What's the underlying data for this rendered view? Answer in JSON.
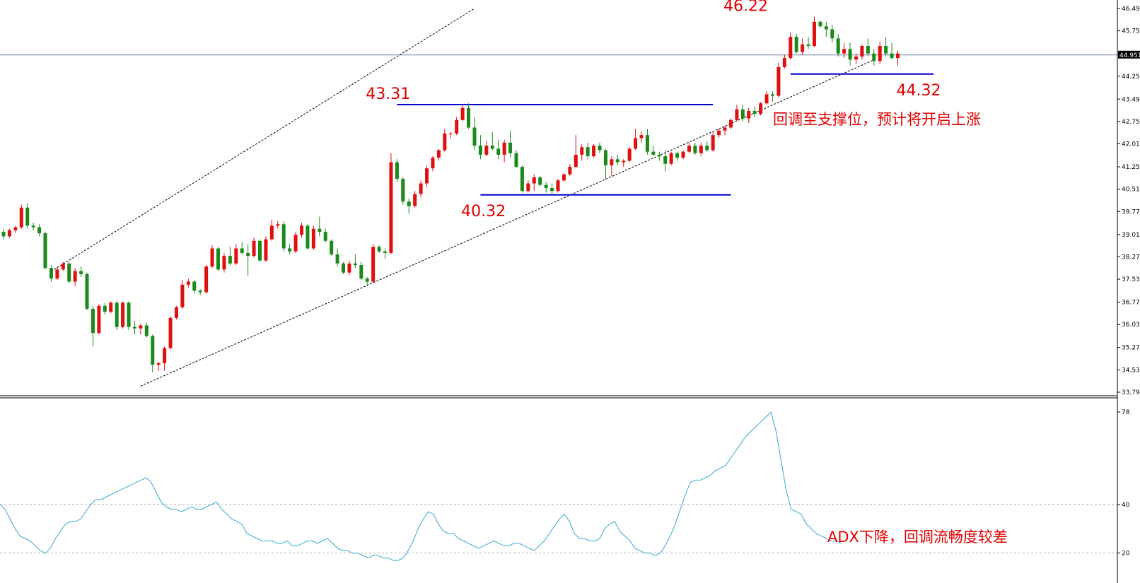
{
  "colors": {
    "up": "#e01010",
    "down": "#1a8a1a",
    "level": "#0000cc",
    "annotation": "#e00000",
    "adx": "#33aacc",
    "axis": "#000000",
    "price_line": "#7080a0"
  },
  "chart_data": [
    {
      "type": "candlestick",
      "ylim": [
        33.79,
        46.49
      ],
      "y_ticks": [
        "46.490",
        "45.750",
        "44.951",
        "44.250",
        "43.490",
        "42.750",
        "42.010",
        "41.250",
        "40.510",
        "39.770",
        "39.010",
        "38.270",
        "37.530",
        "36.770",
        "36.030",
        "35.270",
        "34.530",
        "33.790"
      ],
      "current_price": "44.951",
      "trend_channel": {
        "lower": [
          [
            23,
            33.99
          ],
          [
            146,
            44.79
          ]
        ],
        "upper": [
          [
            8,
            37.79
          ],
          [
            79,
            46.49
          ]
        ]
      },
      "levels": [
        {
          "value": 43.31,
          "x_range": [
            66,
            119
          ]
        },
        {
          "value": 40.32,
          "x_range": [
            80,
            122
          ]
        },
        {
          "value": 44.32,
          "x_range": [
            132,
            156
          ]
        }
      ],
      "annotations": [
        {
          "text": "43.31",
          "x": 64.5,
          "y": 43.31,
          "place": "above"
        },
        {
          "text": "40.32",
          "x": 80.5,
          "y": 40.32,
          "place": "below"
        },
        {
          "text": "46.22",
          "x": 124.5,
          "y": 46.22,
          "place": "above"
        },
        {
          "text": "44.32",
          "x": 153.5,
          "y": 44.32,
          "place": "below"
        }
      ],
      "note": "回调至支撑位，预计将开启上涨",
      "candles": [
        [
          39.1,
          39.2,
          38.85,
          38.95
        ],
        [
          38.95,
          39.2,
          38.9,
          39.15
        ],
        [
          39.15,
          39.3,
          39.05,
          39.25
        ],
        [
          39.25,
          40.0,
          39.2,
          39.9
        ],
        [
          39.9,
          40.05,
          39.2,
          39.3
        ],
        [
          39.3,
          39.4,
          39.15,
          39.25
        ],
        [
          39.25,
          39.35,
          38.95,
          39.05
        ],
        [
          39.05,
          39.1,
          37.85,
          37.9
        ],
        [
          37.9,
          38.0,
          37.45,
          37.55
        ],
        [
          37.55,
          37.95,
          37.5,
          37.85
        ],
        [
          37.85,
          38.1,
          37.8,
          38.05
        ],
        [
          38.05,
          38.1,
          37.4,
          37.45
        ],
        [
          37.45,
          37.9,
          37.3,
          37.8
        ],
        [
          37.8,
          37.95,
          37.6,
          37.7
        ],
        [
          37.7,
          37.75,
          36.5,
          36.55
        ],
        [
          36.55,
          36.65,
          35.3,
          35.75
        ],
        [
          35.75,
          36.7,
          35.7,
          36.65
        ],
        [
          36.65,
          36.75,
          36.35,
          36.45
        ],
        [
          36.45,
          36.8,
          36.4,
          36.75
        ],
        [
          36.75,
          36.8,
          35.85,
          35.95
        ],
        [
          35.95,
          36.8,
          35.9,
          36.75
        ],
        [
          36.75,
          36.8,
          35.85,
          35.95
        ],
        [
          35.95,
          36.15,
          35.7,
          35.9
        ],
        [
          35.9,
          36.05,
          35.7,
          36.0
        ],
        [
          36.0,
          36.1,
          35.6,
          35.65
        ],
        [
          35.65,
          35.7,
          34.45,
          34.7
        ],
        [
          34.7,
          34.8,
          34.5,
          34.75
        ],
        [
          34.75,
          35.3,
          34.5,
          35.25
        ],
        [
          35.25,
          36.3,
          35.2,
          36.25
        ],
        [
          36.25,
          36.65,
          36.2,
          36.6
        ],
        [
          36.6,
          37.5,
          36.55,
          37.35
        ],
        [
          37.35,
          37.55,
          37.25,
          37.45
        ],
        [
          37.45,
          37.5,
          37.05,
          37.15
        ],
        [
          37.15,
          37.2,
          37.0,
          37.1
        ],
        [
          37.1,
          38.0,
          37.05,
          37.95
        ],
        [
          37.95,
          38.65,
          37.9,
          38.55
        ],
        [
          38.55,
          38.6,
          37.8,
          37.85
        ],
        [
          37.85,
          38.4,
          37.75,
          38.3
        ],
        [
          38.3,
          38.6,
          38.0,
          38.05
        ],
        [
          38.05,
          38.7,
          38.0,
          38.55
        ],
        [
          38.55,
          38.75,
          38.35,
          38.4
        ],
        [
          38.4,
          38.7,
          37.65,
          38.3
        ],
        [
          38.3,
          38.9,
          38.25,
          38.8
        ],
        [
          38.8,
          38.85,
          38.1,
          38.15
        ],
        [
          38.15,
          38.95,
          38.1,
          38.85
        ],
        [
          38.85,
          39.5,
          38.8,
          39.3
        ],
        [
          39.3,
          39.45,
          39.2,
          39.35
        ],
        [
          39.35,
          39.45,
          38.45,
          38.55
        ],
        [
          38.55,
          38.7,
          38.35,
          38.45
        ],
        [
          38.45,
          39.1,
          38.4,
          39.0
        ],
        [
          39.0,
          39.4,
          38.9,
          39.3
        ],
        [
          39.3,
          39.35,
          38.5,
          38.55
        ],
        [
          38.55,
          39.3,
          38.5,
          39.2
        ],
        [
          39.2,
          39.6,
          38.95,
          39.1
        ],
        [
          39.1,
          39.2,
          38.75,
          38.8
        ],
        [
          38.8,
          38.85,
          38.3,
          38.35
        ],
        [
          38.35,
          38.55,
          37.95,
          38.05
        ],
        [
          38.05,
          38.1,
          37.7,
          37.75
        ],
        [
          37.75,
          38.15,
          37.65,
          38.05
        ],
        [
          38.05,
          38.35,
          37.9,
          38.0
        ],
        [
          38.0,
          38.1,
          37.5,
          37.55
        ],
        [
          37.55,
          37.6,
          37.3,
          37.45
        ],
        [
          37.45,
          38.7,
          37.4,
          38.6
        ],
        [
          38.6,
          38.65,
          38.4,
          38.45
        ],
        [
          38.45,
          38.55,
          38.2,
          38.4
        ],
        [
          38.4,
          41.7,
          38.35,
          41.4
        ],
        [
          41.4,
          41.5,
          40.75,
          40.85
        ],
        [
          40.85,
          40.9,
          40.0,
          40.1
        ],
        [
          40.1,
          40.2,
          39.7,
          39.95
        ],
        [
          39.95,
          40.45,
          39.9,
          40.35
        ],
        [
          40.35,
          40.8,
          40.25,
          40.7
        ],
        [
          40.7,
          41.3,
          40.6,
          41.2
        ],
        [
          41.2,
          41.6,
          41.1,
          41.55
        ],
        [
          41.55,
          41.85,
          41.45,
          41.8
        ],
        [
          41.8,
          42.5,
          41.75,
          42.35
        ],
        [
          42.35,
          42.4,
          42.2,
          42.35
        ],
        [
          42.35,
          42.9,
          42.3,
          42.8
        ],
        [
          42.8,
          43.31,
          42.75,
          43.2
        ],
        [
          43.2,
          43.35,
          42.5,
          42.55
        ],
        [
          42.55,
          42.9,
          41.8,
          41.95
        ],
        [
          41.95,
          42.3,
          41.5,
          41.65
        ],
        [
          41.65,
          42.1,
          41.6,
          41.95
        ],
        [
          41.95,
          42.4,
          41.8,
          41.85
        ],
        [
          41.85,
          42.15,
          41.5,
          41.65
        ],
        [
          41.65,
          42.15,
          41.4,
          42.05
        ],
        [
          42.05,
          42.45,
          41.55,
          41.7
        ],
        [
          41.7,
          41.8,
          41.2,
          41.25
        ],
        [
          41.25,
          41.3,
          40.4,
          40.45
        ],
        [
          40.45,
          40.8,
          40.4,
          40.7
        ],
        [
          40.7,
          41.0,
          40.45,
          40.9
        ],
        [
          40.9,
          40.95,
          40.6,
          40.65
        ],
        [
          40.65,
          40.75,
          40.4,
          40.55
        ],
        [
          40.55,
          40.7,
          40.32,
          40.45
        ],
        [
          40.45,
          40.85,
          40.4,
          40.8
        ],
        [
          40.8,
          41.05,
          40.75,
          41.0
        ],
        [
          41.0,
          41.35,
          40.95,
          41.25
        ],
        [
          41.25,
          42.3,
          41.2,
          41.65
        ],
        [
          41.65,
          42.0,
          41.45,
          41.9
        ],
        [
          41.9,
          42.05,
          41.5,
          41.6
        ],
        [
          41.6,
          42.0,
          41.55,
          41.95
        ],
        [
          41.95,
          42.05,
          41.7,
          41.8
        ],
        [
          41.8,
          41.85,
          40.85,
          41.3
        ],
        [
          41.3,
          41.6,
          40.95,
          41.5
        ],
        [
          41.5,
          41.65,
          41.3,
          41.4
        ],
        [
          41.4,
          41.5,
          41.25,
          41.45
        ],
        [
          41.45,
          41.9,
          41.4,
          41.85
        ],
        [
          41.85,
          42.5,
          41.8,
          42.2
        ],
        [
          42.2,
          42.4,
          42.05,
          42.3
        ],
        [
          42.3,
          42.5,
          41.65,
          41.75
        ],
        [
          41.75,
          41.95,
          41.6,
          41.65
        ],
        [
          41.65,
          41.75,
          41.45,
          41.6
        ],
        [
          41.6,
          41.8,
          41.1,
          41.35
        ],
        [
          41.35,
          41.75,
          41.3,
          41.7
        ],
        [
          41.7,
          41.75,
          41.45,
          41.55
        ],
        [
          41.55,
          41.8,
          41.5,
          41.75
        ],
        [
          41.75,
          42.05,
          41.7,
          41.95
        ],
        [
          41.95,
          42.05,
          41.65,
          41.7
        ],
        [
          41.7,
          42.05,
          41.6,
          41.95
        ],
        [
          41.95,
          42.1,
          41.75,
          41.8
        ],
        [
          41.8,
          42.4,
          41.75,
          42.3
        ],
        [
          42.3,
          42.5,
          42.2,
          42.45
        ],
        [
          42.45,
          42.6,
          42.3,
          42.55
        ],
        [
          42.55,
          42.85,
          42.5,
          42.8
        ],
        [
          42.8,
          43.3,
          42.75,
          43.15
        ],
        [
          43.15,
          43.3,
          42.75,
          42.85
        ],
        [
          42.85,
          43.2,
          42.7,
          43.1
        ],
        [
          43.1,
          43.25,
          42.9,
          43.0
        ],
        [
          43.0,
          43.4,
          42.95,
          43.35
        ],
        [
          43.35,
          43.75,
          43.3,
          43.65
        ],
        [
          43.65,
          43.75,
          43.4,
          43.6
        ],
        [
          43.6,
          44.7,
          43.55,
          44.55
        ],
        [
          44.55,
          44.95,
          44.5,
          44.85
        ],
        [
          44.85,
          45.7,
          44.8,
          45.55
        ],
        [
          45.55,
          45.65,
          45.0,
          45.05
        ],
        [
          45.05,
          45.5,
          44.95,
          45.3
        ],
        [
          45.3,
          45.55,
          45.15,
          45.25
        ],
        [
          45.25,
          46.22,
          45.2,
          46.05
        ],
        [
          46.05,
          46.1,
          45.85,
          45.9
        ],
        [
          45.9,
          46.05,
          45.55,
          45.8
        ],
        [
          45.8,
          45.95,
          45.35,
          45.5
        ],
        [
          45.5,
          45.65,
          44.9,
          45.0
        ],
        [
          45.0,
          45.35,
          44.85,
          45.15
        ],
        [
          45.15,
          45.35,
          44.6,
          44.8
        ],
        [
          44.8,
          45.0,
          44.65,
          44.9
        ],
        [
          44.9,
          45.3,
          44.8,
          45.25
        ],
        [
          45.25,
          45.5,
          44.9,
          45.0
        ],
        [
          45.0,
          45.15,
          44.6,
          44.75
        ],
        [
          44.75,
          45.4,
          44.65,
          45.25
        ],
        [
          45.25,
          45.55,
          44.9,
          45.0
        ],
        [
          45.0,
          45.35,
          44.8,
          44.85
        ],
        [
          44.85,
          45.1,
          44.6,
          45.0
        ]
      ]
    },
    {
      "type": "line",
      "name": "ADX",
      "ylim": [
        17,
        78
      ],
      "y_ticks": [
        "78",
        "40",
        "20"
      ],
      "reference_lines": [
        40,
        20
      ],
      "note": "ADX下降，回调流畅度较差",
      "values": [
        40,
        38,
        34,
        30,
        27,
        26,
        25,
        23,
        21,
        20,
        22,
        26,
        29,
        32,
        33,
        33,
        34,
        37,
        40,
        42,
        42,
        43,
        44,
        45,
        46,
        47,
        48,
        49,
        50,
        51,
        49,
        45,
        41,
        39,
        38,
        38,
        37,
        38,
        39,
        38,
        38,
        39,
        40,
        41,
        38,
        36,
        34,
        33,
        32,
        28,
        27,
        26,
        25,
        25,
        25,
        24,
        24,
        25,
        23,
        23,
        24,
        25,
        25,
        24,
        25,
        26,
        24,
        22,
        21,
        21,
        20,
        20,
        19,
        18,
        19,
        19,
        18,
        18,
        17,
        17,
        18,
        21,
        25,
        30,
        34,
        37,
        36,
        32,
        29,
        28,
        28,
        26,
        25,
        24,
        23,
        22,
        23,
        24,
        25,
        24,
        23,
        23,
        24,
        24,
        23,
        22,
        21,
        23,
        25,
        28,
        31,
        34,
        36,
        33,
        28,
        26,
        26,
        25,
        25,
        26,
        30,
        32,
        33,
        29,
        27,
        25,
        22,
        21,
        20,
        20,
        19,
        20,
        23,
        27,
        32,
        38,
        44,
        49,
        50,
        50,
        51,
        52,
        54,
        55,
        56,
        59,
        62,
        65,
        68,
        70,
        72,
        74,
        76,
        78,
        70,
        58,
        46,
        38,
        37,
        36,
        32,
        30,
        28,
        27,
        26,
        25,
        25,
        24
      ]
    }
  ]
}
